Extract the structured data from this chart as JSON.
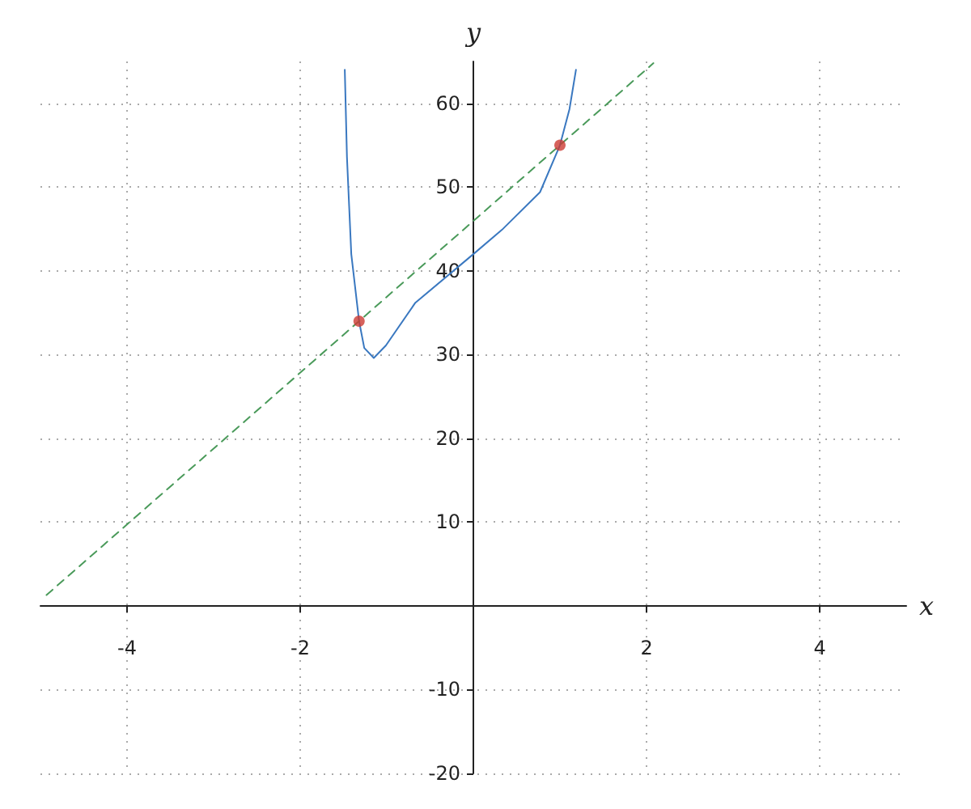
{
  "chart_data": {
    "type": "line",
    "xlabel": "x",
    "ylabel": "y",
    "xlim": [
      -5,
      5
    ],
    "ylim": [
      -20,
      65
    ],
    "xticks": [
      -4,
      -2,
      2,
      4
    ],
    "yticks": [
      -20,
      -10,
      10,
      20,
      30,
      40,
      50,
      60
    ],
    "grid": true,
    "series": [
      {
        "color": "#3a78c0",
        "marker": "none",
        "line_style": "solid",
        "x": [
          -1.485,
          -1.46,
          -1.41,
          -1.32,
          -1.26,
          -1.15,
          -1.01,
          -0.67,
          0,
          0.33,
          0.77,
          1.0,
          1.11,
          1.185
        ],
        "values": [
          64,
          53.6,
          42,
          34,
          30.8,
          29.6,
          31.1,
          36.2,
          42,
          44.9,
          49.4,
          55,
          59.3,
          64
        ]
      },
      {
        "color": "#4a9a5a",
        "marker": "none",
        "line_style": "dashed",
        "x": [
          -4.93,
          2.08
        ],
        "values": [
          1.3,
          64.8
        ]
      },
      {
        "type": "scatter",
        "color": "#cc3b33",
        "marker": "circle",
        "x": [
          -1.32,
          1.0
        ],
        "values": [
          34,
          55
        ]
      }
    ]
  }
}
